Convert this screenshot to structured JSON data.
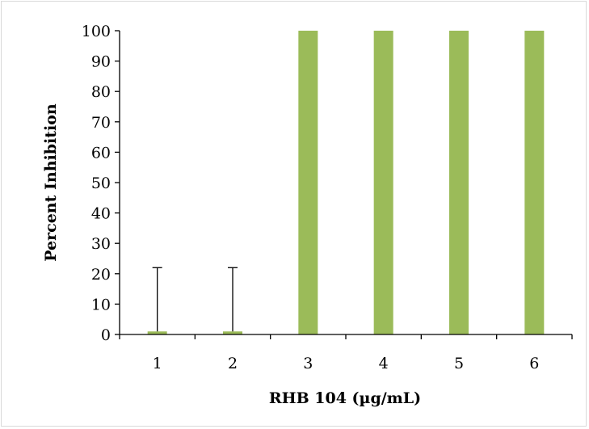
{
  "chart_data": {
    "type": "bar",
    "title": "",
    "xlabel": "RHB 104 (µg/mL)",
    "ylabel": "Percent Inhibition",
    "categories": [
      "1",
      "2",
      "3",
      "4",
      "5",
      "6"
    ],
    "series": [
      {
        "values": [
          1,
          1,
          100,
          100,
          100,
          100
        ],
        "error_plus": [
          21,
          21,
          0,
          0,
          0,
          0
        ]
      }
    ],
    "ylim": [
      0,
      100
    ],
    "yticks": [
      0,
      10,
      20,
      30,
      40,
      50,
      60,
      70,
      80,
      90,
      100
    ],
    "grid": false,
    "legend": "none",
    "bar_color": "#9bbb59",
    "axis_color": "#000000"
  }
}
